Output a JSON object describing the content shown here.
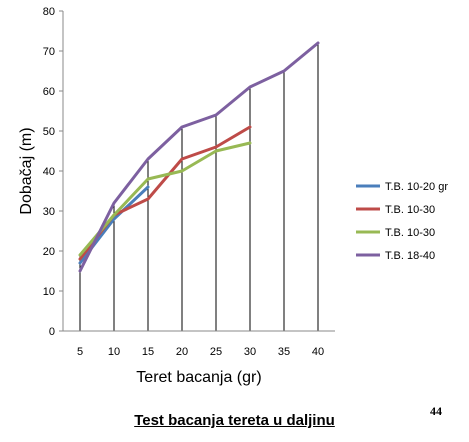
{
  "chart_data": {
    "type": "line",
    "title": "",
    "xlabel": "Teret bacanja (gr)",
    "ylabel": "Dobačaj (m)",
    "categories": [
      "5",
      "10",
      "15",
      "20",
      "25",
      "30",
      "35",
      "40"
    ],
    "ylim": [
      0,
      80
    ],
    "yticks": [
      "0",
      "10",
      "20",
      "30",
      "40",
      "50",
      "60",
      "70",
      "80"
    ],
    "grid": "vertical drop lines",
    "legend_position": "right",
    "series": [
      {
        "name": "T.B. 10-20 gr",
        "color": "#4a7ebb",
        "values": [
          17,
          28,
          36,
          null,
          null,
          null,
          null,
          null
        ]
      },
      {
        "name": "T.B. 10-30",
        "color": "#be4b48",
        "values": [
          18,
          29,
          33,
          43,
          46,
          51,
          null,
          null
        ]
      },
      {
        "name": "T.B. 10-30",
        "color": "#98b954",
        "values": [
          19,
          29,
          38,
          40,
          45,
          47,
          null,
          null
        ]
      },
      {
        "name": "T.B. 18-40",
        "color": "#7d60a0",
        "values": [
          15,
          32,
          43,
          51,
          54,
          61,
          65,
          72
        ]
      }
    ]
  },
  "caption": "Test bacanja tereta u daljinu",
  "page_number": "44"
}
